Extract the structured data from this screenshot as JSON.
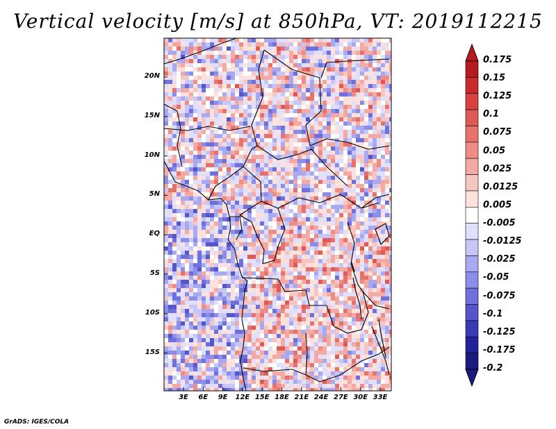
{
  "title": "Vertical velocity [m/s] at 850hPa, VT: 2019112215",
  "credit": "GrADS: IGES/COLA",
  "axes": {
    "lon_ticks": [
      "3E",
      "6E",
      "9E",
      "12E",
      "15E",
      "18E",
      "21E",
      "24E",
      "27E",
      "30E",
      "33E"
    ],
    "lat_ticks": [
      "20N",
      "15N",
      "10N",
      "5N",
      "EQ",
      "5S",
      "10S",
      "15S"
    ]
  },
  "colorbar": {
    "labels": [
      "0.175",
      "0.15",
      "0.125",
      "0.1",
      "0.075",
      "0.05",
      "0.025",
      "0.0125",
      "0.005",
      "-0.005",
      "-0.0125",
      "-0.025",
      "-0.05",
      "-0.075",
      "-0.1",
      "-0.125",
      "-0.175",
      "-0.2"
    ],
    "colors": [
      "#b51a1d",
      "#c82a2c",
      "#d6403e",
      "#df5a55",
      "#e7726b",
      "#ee8c85",
      "#f4a9a2",
      "#f8c6c0",
      "#fce1dd",
      "#ffffff",
      "#e0e0fc",
      "#c6c6f8",
      "#a9a9f2",
      "#8c8ce9",
      "#7070dd",
      "#5555cc",
      "#3a3ab5",
      "#22229a",
      "#1a1a80"
    ],
    "over_color": "#b51a1d",
    "under_color": "#1a1a80"
  }
}
